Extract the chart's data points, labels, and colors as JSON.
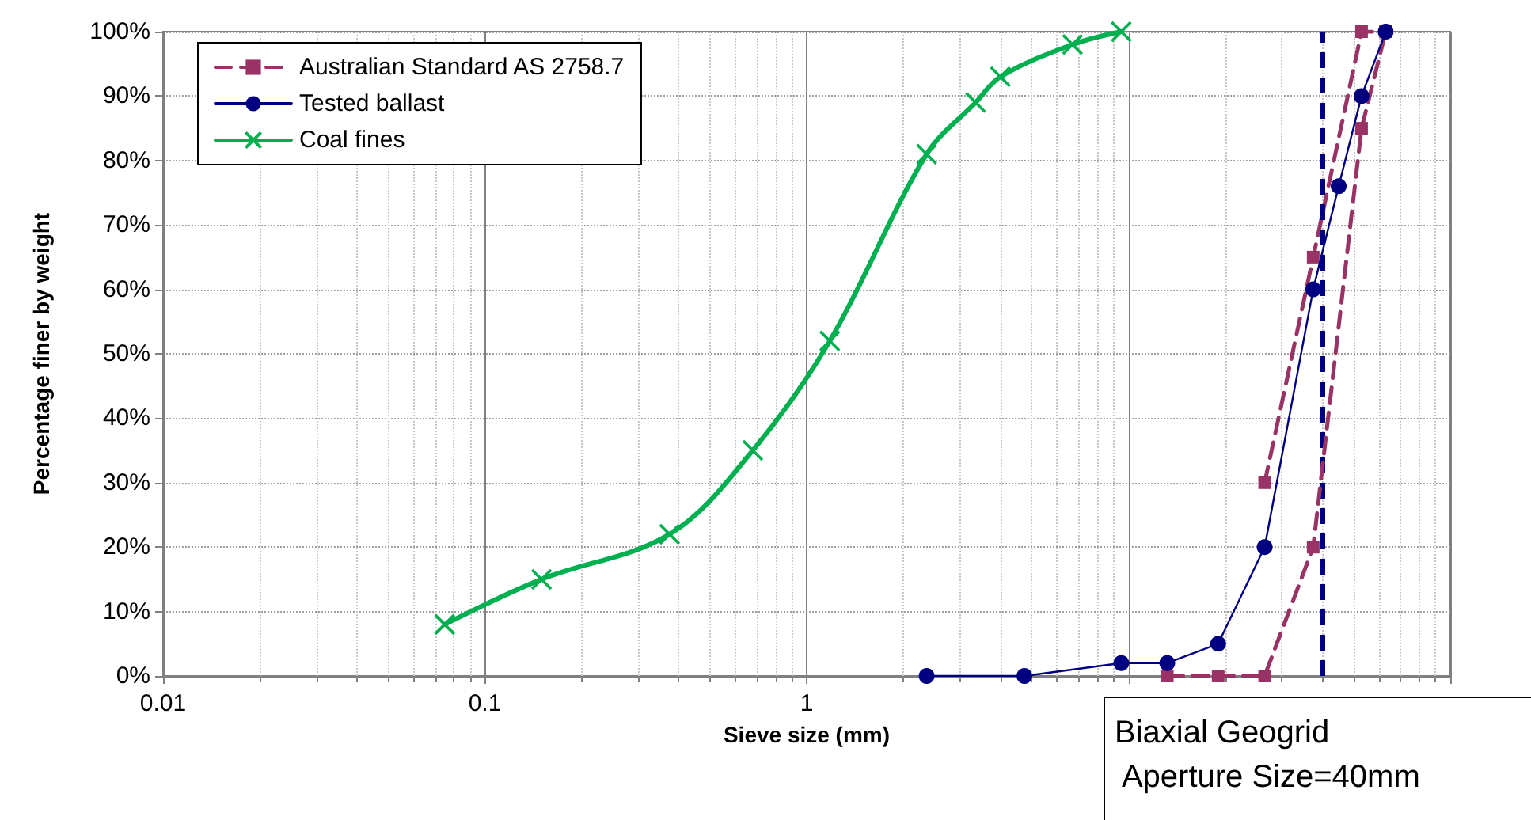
{
  "chart_data": {
    "type": "line",
    "xlabel": "Sieve size (mm)",
    "ylabel": "Percentage finer by weight",
    "log": "x",
    "xlim": [
      0.01,
      100
    ],
    "xticks": [
      0.01,
      0.1,
      1,
      {
        "value": 10,
        "label": null
      },
      {
        "value": 100,
        "label": null
      }
    ],
    "ylim": [
      0,
      100
    ],
    "yticks": [
      {
        "value": 0,
        "label": "0%"
      },
      {
        "value": 10,
        "label": "10%"
      },
      {
        "value": 20,
        "label": "20%"
      },
      {
        "value": 30,
        "label": "30%"
      },
      {
        "value": 40,
        "label": "40%"
      },
      {
        "value": 50,
        "label": "50%"
      },
      {
        "value": 60,
        "label": "60%"
      },
      {
        "value": 70,
        "label": "70%"
      },
      {
        "value": 80,
        "label": "80%"
      },
      {
        "value": 90,
        "label": "90%"
      },
      {
        "value": 100,
        "label": "100%"
      }
    ],
    "grid": true,
    "legend": "top left",
    "series": [
      {
        "name": "Australian Standard AS 2758.7",
        "color": "#993366",
        "marker": "square",
        "line_style": "dashed",
        "x": [
          26.5,
          37.5,
          53,
          63
        ],
        "values": [
          30,
          65,
          100,
          100
        ]
      },
      {
        "name": "Tested ballast",
        "color": "#000080",
        "marker": "circle",
        "line_style": "solid",
        "x": [
          2.36,
          4.75,
          9.5,
          13.2,
          19,
          26.5,
          37.5,
          45,
          53,
          63
        ],
        "values": [
          0,
          0,
          2,
          2,
          5,
          20,
          60,
          76,
          90,
          100
        ]
      },
      {
        "name": "Coal fines",
        "color": "#00b050",
        "marker": "cross",
        "line_style": "solid",
        "x": [
          0.075,
          0.15,
          0.375,
          0.68,
          1.18,
          2.36,
          3.35,
          4.0,
          6.7,
          9.5
        ],
        "values": [
          8,
          15,
          22,
          35,
          52,
          81,
          89,
          93,
          98,
          100
        ]
      },
      {
        "color": "#993366",
        "marker": "square",
        "line_style": "dashed",
        "x": [
          13.2,
          19,
          26.5,
          37.5,
          53,
          63
        ],
        "values": [
          0,
          0,
          0,
          20,
          85,
          100
        ]
      }
    ],
    "ref_lines": [
      {
        "axis": "x",
        "value": 40,
        "color": "#000080",
        "line_style": "dashed"
      }
    ],
    "annotations": [
      "Biaxial Geogrid\n Aperture Size=40mm"
    ]
  }
}
